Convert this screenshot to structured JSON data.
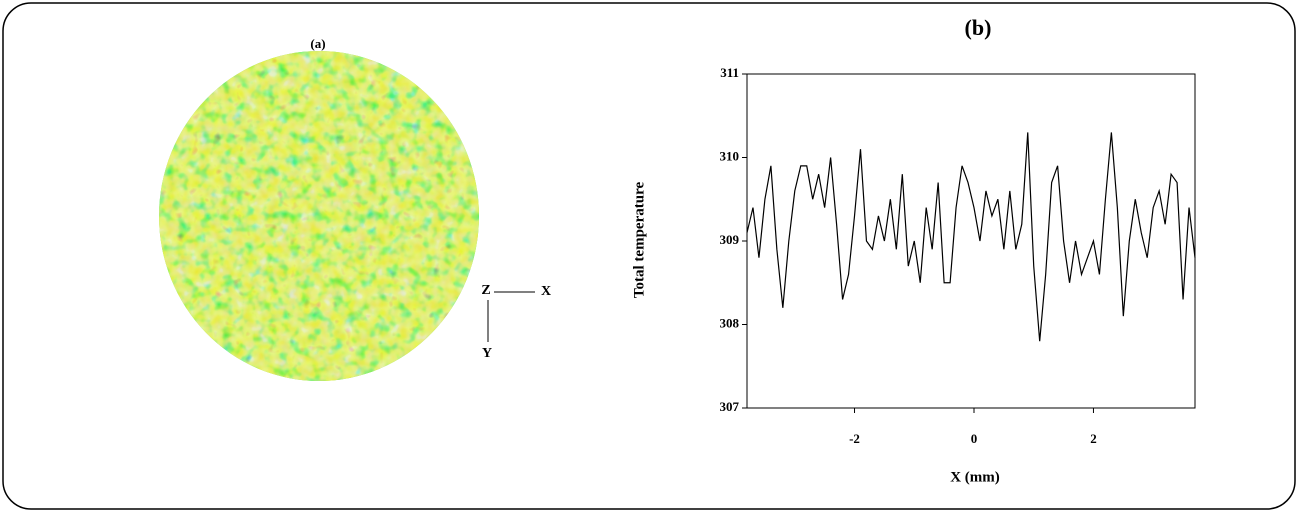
{
  "panel_a": {
    "label": "(a)",
    "axis_labels": [
      "Z",
      "X",
      "Y"
    ]
  },
  "chart_data": {
    "type": "line",
    "title": "(b)",
    "x_label": "X (mm)",
    "y_label": "Total temperature",
    "x": [
      -3.8,
      -3.7,
      -3.6,
      -3.5,
      -3.4,
      -3.3,
      -3.2,
      -3.1,
      -3.0,
      -2.9,
      -2.8,
      -2.7,
      -2.6,
      -2.5,
      -2.4,
      -2.3,
      -2.2,
      -2.1,
      -2.0,
      -1.9,
      -1.8,
      -1.7,
      -1.6,
      -1.5,
      -1.4,
      -1.3,
      -1.2,
      -1.1,
      -1.0,
      -0.9,
      -0.8,
      -0.7,
      -0.6,
      -0.5,
      -0.4,
      -0.3,
      -0.2,
      -0.1,
      0.0,
      0.1,
      0.2,
      0.3,
      0.4,
      0.5,
      0.6,
      0.7,
      0.8,
      0.9,
      1.0,
      1.1,
      1.2,
      1.3,
      1.4,
      1.5,
      1.6,
      1.7,
      1.8,
      1.9,
      2.0,
      2.1,
      2.2,
      2.3,
      2.4,
      2.5,
      2.6,
      2.7,
      2.8,
      2.9,
      3.0,
      3.1,
      3.2,
      3.3,
      3.4,
      3.5,
      3.6,
      3.7
    ],
    "series": [
      {
        "name": "Total temperature",
        "color": "#000000",
        "values": [
          309.1,
          309.4,
          308.8,
          309.5,
          309.9,
          308.9,
          308.2,
          309.0,
          309.6,
          309.9,
          309.9,
          309.5,
          309.8,
          309.4,
          310.0,
          309.2,
          308.3,
          308.6,
          309.3,
          310.1,
          309.0,
          308.9,
          309.3,
          309.0,
          309.5,
          308.9,
          309.8,
          308.7,
          309.0,
          308.5,
          309.4,
          308.9,
          309.7,
          308.5,
          308.5,
          309.4,
          309.9,
          309.7,
          309.4,
          309.0,
          309.6,
          309.3,
          309.5,
          308.9,
          309.6,
          308.9,
          309.2,
          310.3,
          308.7,
          307.8,
          308.6,
          309.7,
          309.9,
          309.0,
          308.5,
          309.0,
          308.6,
          308.8,
          309.0,
          308.6,
          309.5,
          310.3,
          309.4,
          308.1,
          309.0,
          309.5,
          309.1,
          308.8,
          309.4,
          309.6,
          309.2,
          309.8,
          309.7,
          308.3,
          309.4,
          308.8
        ]
      }
    ],
    "xlim": [
      -3.8,
      3.7
    ],
    "ylim": [
      307,
      311
    ],
    "xticks": [
      -2,
      0,
      2
    ],
    "yticks": [
      307,
      308,
      309,
      310,
      311
    ],
    "grid": false
  }
}
